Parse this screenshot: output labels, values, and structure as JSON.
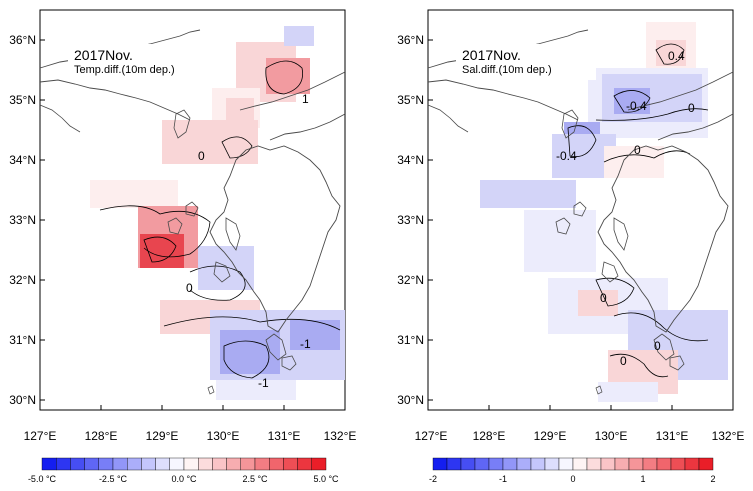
{
  "colors": {
    "red_strong": "#e8454f",
    "red_mid": "#f29ba0",
    "red_light": "#f9d6d7",
    "red_pale": "#fdeeee",
    "blue_strong": "#6f72ee",
    "blue_mid": "#a9abf2",
    "blue_light": "#d3d4f8",
    "blue_pale": "#ececfc",
    "coast": "#4a4a4a",
    "contour": "#000000"
  },
  "left_panel": {
    "title_line1": "2017Nov.",
    "title_line2": "Temp.diff.(10m dep.)",
    "lat_labels": [
      "36°N",
      "35°N",
      "34°N",
      "33°N",
      "32°N",
      "31°N",
      "30°N"
    ],
    "lon_labels": [
      "127°E",
      "128°E",
      "129°E",
      "130°E",
      "131°E",
      "132°E"
    ],
    "contour_labels": [
      "1",
      "0",
      "0",
      "-1",
      "-1"
    ],
    "colorbar": {
      "tick_labels": [
        "-5.0 °C",
        "-2.5 °C",
        "0.0 °C",
        "2.5 °C",
        "5.0 °C"
      ],
      "min": -5.0,
      "max": 5.0,
      "bins": 20
    }
  },
  "right_panel": {
    "title_line1": "2017Nov.",
    "title_line2": "Sal.diff.(10m dep.)",
    "lat_labels": [
      "36°N",
      "35°N",
      "34°N",
      "33°N",
      "32°N",
      "31°N",
      "30°N"
    ],
    "lon_labels": [
      "127°E",
      "128°E",
      "129°E",
      "130°E",
      "131°E",
      "132°E"
    ],
    "contour_labels": [
      "0.4",
      "-0.4",
      "0",
      "-0.4",
      "0",
      "0",
      "0",
      "0"
    ],
    "colorbar": {
      "tick_labels": [
        "-2",
        "-1",
        "0",
        "1",
        "2"
      ],
      "min": -2,
      "max": 2,
      "bins": 20
    }
  }
}
